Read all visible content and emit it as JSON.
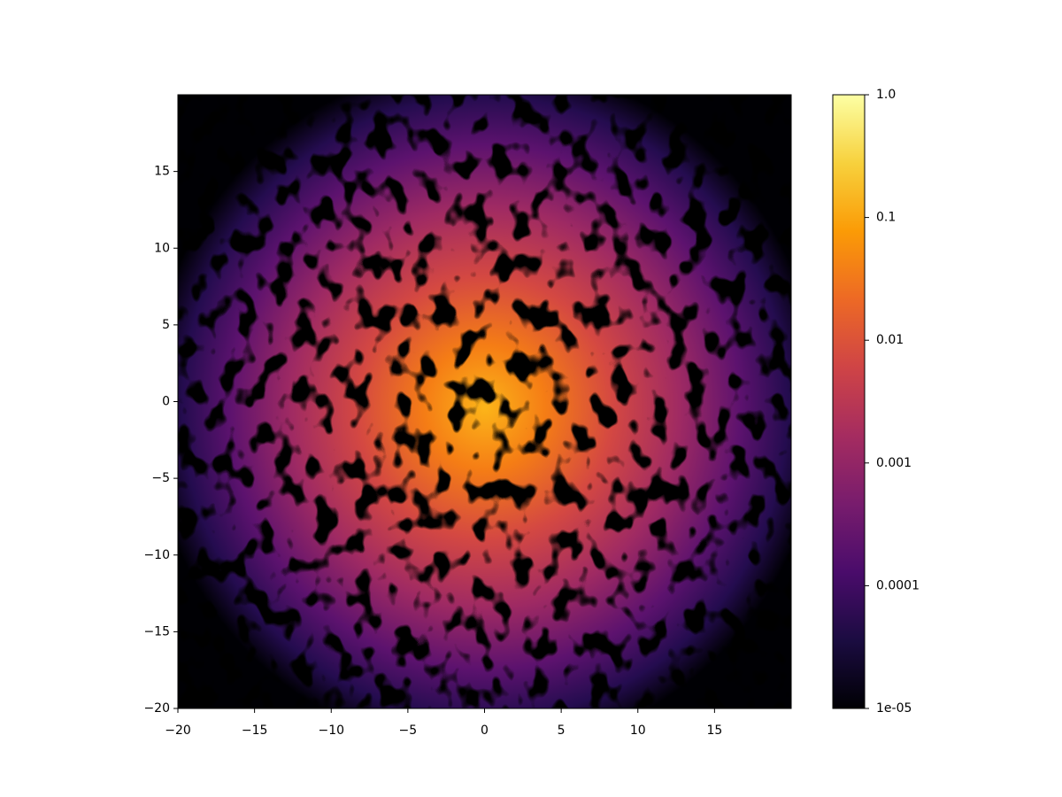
{
  "chart_data": {
    "type": "heatmap",
    "xlim": [
      -20,
      20
    ],
    "ylim": [
      -20,
      20
    ],
    "xticks": [
      {
        "value": -20,
        "label": "−20"
      },
      {
        "value": -15,
        "label": "−15"
      },
      {
        "value": -10,
        "label": "−10"
      },
      {
        "value": -5,
        "label": "−5"
      },
      0,
      5,
      10,
      15
    ],
    "yticks": [
      {
        "value": -20,
        "label": "−20"
      },
      {
        "value": -15,
        "label": "−15"
      },
      {
        "value": -10,
        "label": "−10"
      },
      {
        "value": -5,
        "label": "−5"
      },
      0,
      5,
      10,
      15
    ],
    "colormap": "inferno",
    "colorbar": {
      "scale": "log",
      "lim": [
        1e-05,
        1
      ],
      "ticks": [
        {
          "value": 1,
          "label": "1.0"
        },
        0.1,
        0.01,
        0.001,
        0.0001,
        {
          "value": 1e-05,
          "label": "1e-05"
        }
      ]
    }
  }
}
